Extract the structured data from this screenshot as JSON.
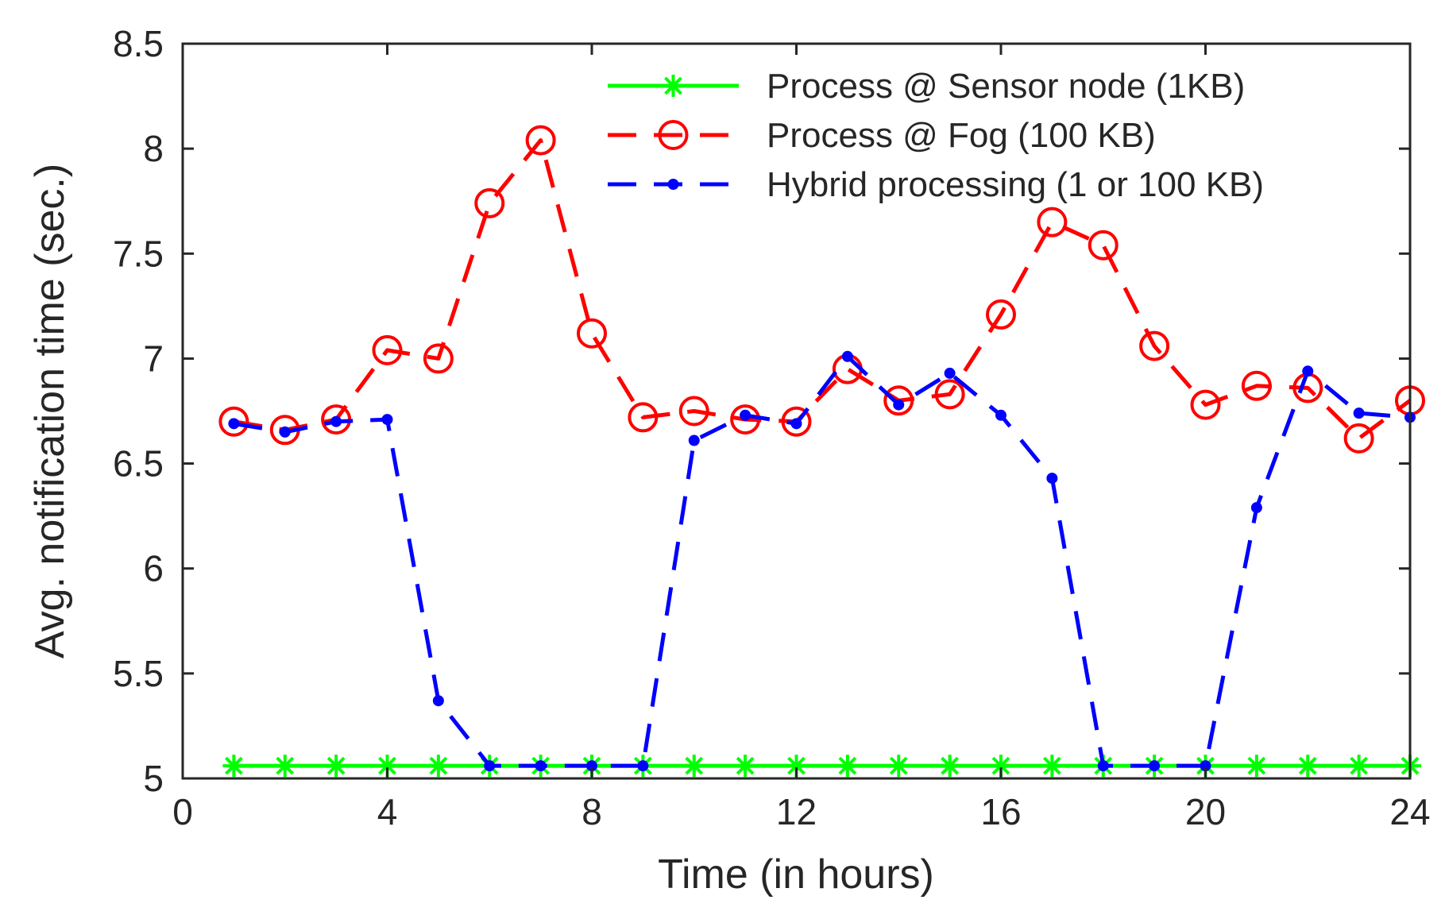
{
  "chart_data": {
    "type": "line",
    "title": "",
    "xlabel": "Time (in hours)",
    "ylabel": "Avg. notification time (sec.)",
    "xlim": [
      0,
      24
    ],
    "ylim": [
      5,
      8.5
    ],
    "xticks": [
      0,
      4,
      8,
      12,
      16,
      20,
      24
    ],
    "yticks": [
      5,
      5.5,
      6,
      6.5,
      7,
      7.5,
      8,
      8.5
    ],
    "xtick_labels": [
      "0",
      "4",
      "8",
      "12",
      "16",
      "20",
      "24"
    ],
    "ytick_labels": [
      "5",
      "5.5",
      "6",
      "6.5",
      "7",
      "7.5",
      "8",
      "8.5"
    ],
    "grid": false,
    "legend_position": "top-right",
    "x": [
      1,
      2,
      3,
      4,
      5,
      6,
      7,
      8,
      9,
      10,
      11,
      12,
      13,
      14,
      15,
      16,
      17,
      18,
      19,
      20,
      21,
      22,
      23,
      24
    ],
    "series": [
      {
        "name": "Process @ Sensor node (1KB)",
        "color": "#00ff00",
        "line_style": "solid",
        "marker": "asterisk",
        "values": [
          5.06,
          5.06,
          5.06,
          5.06,
          5.06,
          5.06,
          5.06,
          5.06,
          5.06,
          5.06,
          5.06,
          5.06,
          5.06,
          5.06,
          5.06,
          5.06,
          5.06,
          5.06,
          5.06,
          5.06,
          5.06,
          5.06,
          5.06,
          5.06
        ]
      },
      {
        "name": "Process @ Fog (100 KB)",
        "color": "#ff0000",
        "line_style": "dashed",
        "marker": "circle",
        "values": [
          6.7,
          6.66,
          6.71,
          7.04,
          7.0,
          7.74,
          8.04,
          7.12,
          6.72,
          6.75,
          6.71,
          6.7,
          6.95,
          6.8,
          6.83,
          7.21,
          7.65,
          7.54,
          7.06,
          6.78,
          6.87,
          6.86,
          6.62,
          6.8
        ]
      },
      {
        "name": "Hybrid processing (1 or 100 KB)",
        "color": "#0000ff",
        "line_style": "dashed",
        "marker": "dot",
        "values": [
          6.69,
          6.65,
          6.7,
          6.71,
          5.37,
          5.06,
          5.06,
          5.06,
          5.06,
          6.61,
          6.73,
          6.69,
          7.01,
          6.78,
          6.93,
          6.73,
          6.43,
          5.06,
          5.06,
          5.06,
          6.29,
          6.94,
          6.74,
          6.72
        ]
      }
    ]
  }
}
